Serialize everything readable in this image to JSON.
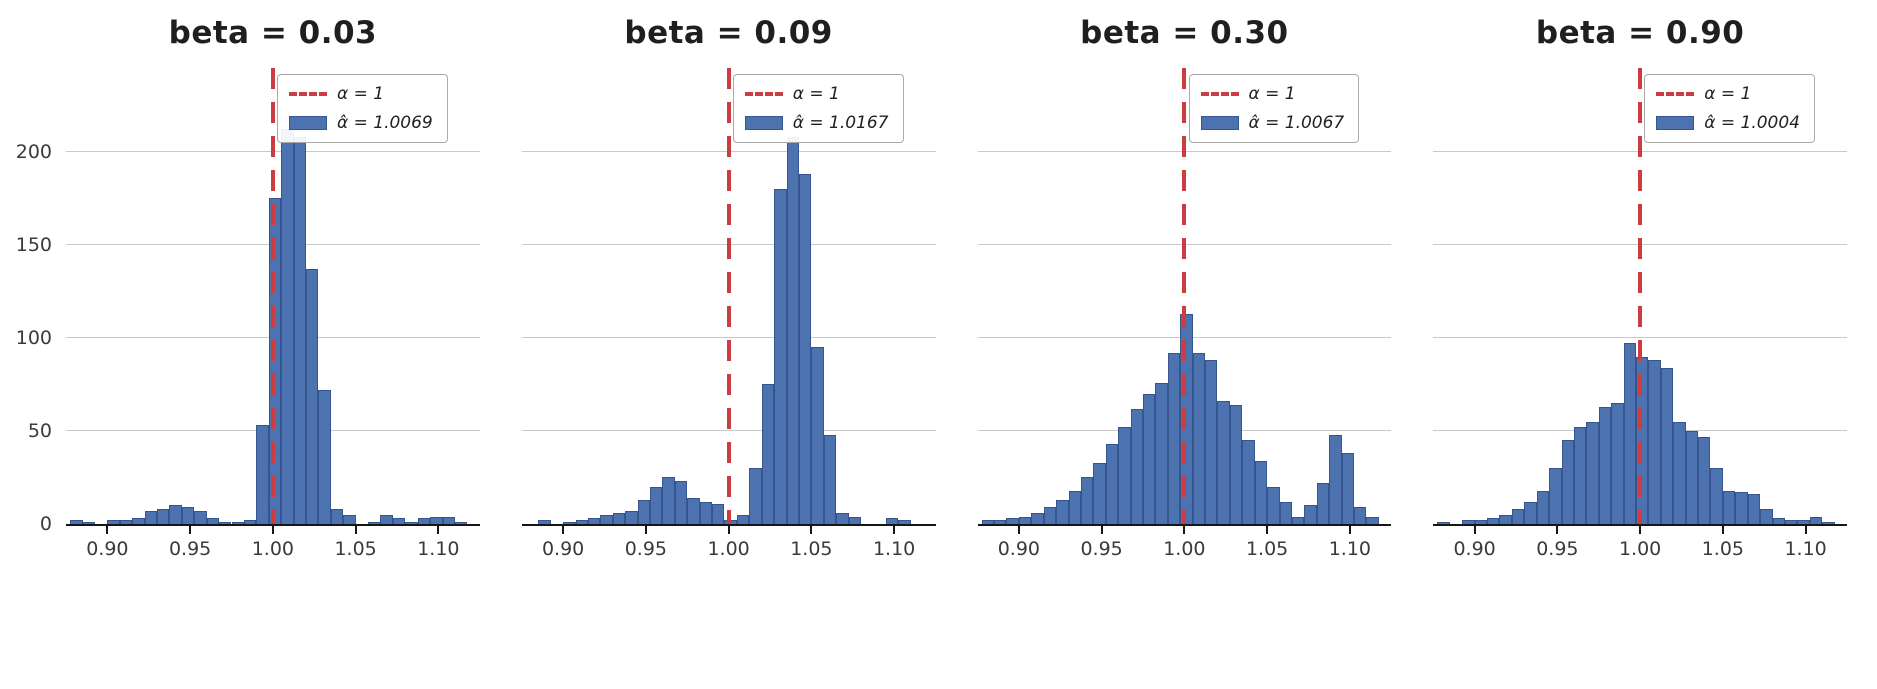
{
  "figure": {
    "background": "#ffffff",
    "bar_color": "#4c72b0",
    "bar_edge_color": "#35558f",
    "vline_color": "#cb3d40",
    "grid_color": "#c9c9c9"
  },
  "chart_data": [
    {
      "type": "bar",
      "subtype": "histogram",
      "title": "beta = 0.03",
      "legend": {
        "line_label": "α = 1",
        "bar_label": "α̂ = 1.0069"
      },
      "vline_x": 1.0,
      "xlim": [
        0.875,
        1.125
      ],
      "ylim": [
        0,
        245
      ],
      "bin_width": 0.0075,
      "x_ticks": [
        0.9,
        0.95,
        1.0,
        1.05,
        1.1
      ],
      "x_tick_labels": [
        "0.90",
        "0.95",
        "1.00",
        "1.05",
        "1.10"
      ],
      "y_ticks": [
        0,
        50,
        100,
        150,
        200
      ],
      "show_y_labels": true,
      "grid": true,
      "legend_position": "upper-right",
      "bins": [
        [
          0.8775,
          2
        ],
        [
          0.885,
          1
        ],
        [
          0.9,
          2
        ],
        [
          0.9075,
          2
        ],
        [
          0.915,
          3
        ],
        [
          0.9225,
          7
        ],
        [
          0.93,
          8
        ],
        [
          0.9375,
          10
        ],
        [
          0.945,
          9
        ],
        [
          0.9525,
          7
        ],
        [
          0.96,
          3
        ],
        [
          0.9675,
          1
        ],
        [
          0.975,
          1
        ],
        [
          0.9825,
          2
        ],
        [
          0.99,
          53
        ],
        [
          0.9975,
          175
        ],
        [
          1.005,
          212
        ],
        [
          1.0125,
          208
        ],
        [
          1.02,
          137
        ],
        [
          1.0275,
          72
        ],
        [
          1.035,
          8
        ],
        [
          1.0425,
          5
        ],
        [
          1.0575,
          1
        ],
        [
          1.065,
          5
        ],
        [
          1.0725,
          3
        ],
        [
          1.08,
          1
        ],
        [
          1.0875,
          3
        ],
        [
          1.095,
          4
        ],
        [
          1.1025,
          4
        ],
        [
          1.11,
          1
        ]
      ]
    },
    {
      "type": "bar",
      "subtype": "histogram",
      "title": "beta = 0.09",
      "legend": {
        "line_label": "α = 1",
        "bar_label": "α̂ = 1.0167"
      },
      "vline_x": 1.0,
      "xlim": [
        0.875,
        1.125
      ],
      "ylim": [
        0,
        245
      ],
      "bin_width": 0.0075,
      "x_ticks": [
        0.9,
        0.95,
        1.0,
        1.05,
        1.1
      ],
      "x_tick_labels": [
        "0.90",
        "0.95",
        "1.00",
        "1.05",
        "1.10"
      ],
      "y_ticks": [
        0,
        50,
        100,
        150,
        200
      ],
      "show_y_labels": false,
      "grid": true,
      "legend_position": "upper-right",
      "bins": [
        [
          0.885,
          2
        ],
        [
          0.9,
          1
        ],
        [
          0.9075,
          2
        ],
        [
          0.915,
          3
        ],
        [
          0.9225,
          5
        ],
        [
          0.93,
          6
        ],
        [
          0.9375,
          7
        ],
        [
          0.945,
          13
        ],
        [
          0.9525,
          20
        ],
        [
          0.96,
          25
        ],
        [
          0.9675,
          23
        ],
        [
          0.975,
          14
        ],
        [
          0.9825,
          12
        ],
        [
          0.99,
          11
        ],
        [
          0.9975,
          2
        ],
        [
          1.005,
          5
        ],
        [
          1.0125,
          30
        ],
        [
          1.02,
          75
        ],
        [
          1.0275,
          180
        ],
        [
          1.035,
          208
        ],
        [
          1.0425,
          188
        ],
        [
          1.05,
          95
        ],
        [
          1.0575,
          48
        ],
        [
          1.065,
          6
        ],
        [
          1.0725,
          4
        ],
        [
          1.095,
          3
        ],
        [
          1.1025,
          2
        ]
      ]
    },
    {
      "type": "bar",
      "subtype": "histogram",
      "title": "beta = 0.30",
      "legend": {
        "line_label": "α = 1",
        "bar_label": "α̂ = 1.0067"
      },
      "vline_x": 1.0,
      "xlim": [
        0.875,
        1.125
      ],
      "ylim": [
        0,
        245
      ],
      "bin_width": 0.0075,
      "x_ticks": [
        0.9,
        0.95,
        1.0,
        1.05,
        1.1
      ],
      "x_tick_labels": [
        "0.90",
        "0.95",
        "1.00",
        "1.05",
        "1.10"
      ],
      "y_ticks": [
        0,
        50,
        100,
        150,
        200
      ],
      "show_y_labels": false,
      "grid": true,
      "legend_position": "upper-right",
      "bins": [
        [
          0.8775,
          2
        ],
        [
          0.885,
          2
        ],
        [
          0.8925,
          3
        ],
        [
          0.9,
          4
        ],
        [
          0.9075,
          6
        ],
        [
          0.915,
          9
        ],
        [
          0.9225,
          13
        ],
        [
          0.93,
          18
        ],
        [
          0.9375,
          25
        ],
        [
          0.945,
          33
        ],
        [
          0.9525,
          43
        ],
        [
          0.96,
          52
        ],
        [
          0.9675,
          62
        ],
        [
          0.975,
          70
        ],
        [
          0.9825,
          76
        ],
        [
          0.99,
          92
        ],
        [
          0.9975,
          113
        ],
        [
          1.005,
          92
        ],
        [
          1.0125,
          88
        ],
        [
          1.02,
          66
        ],
        [
          1.0275,
          64
        ],
        [
          1.035,
          45
        ],
        [
          1.0425,
          34
        ],
        [
          1.05,
          20
        ],
        [
          1.0575,
          12
        ],
        [
          1.065,
          4
        ],
        [
          1.0725,
          10
        ],
        [
          1.08,
          22
        ],
        [
          1.0875,
          48
        ],
        [
          1.095,
          38
        ],
        [
          1.1025,
          9
        ],
        [
          1.11,
          4
        ]
      ]
    },
    {
      "type": "bar",
      "subtype": "histogram",
      "title": "beta = 0.90",
      "legend": {
        "line_label": "α = 1",
        "bar_label": "α̂ = 1.0004"
      },
      "vline_x": 1.0,
      "xlim": [
        0.875,
        1.125
      ],
      "ylim": [
        0,
        245
      ],
      "bin_width": 0.0075,
      "x_ticks": [
        0.9,
        0.95,
        1.0,
        1.05,
        1.1
      ],
      "x_tick_labels": [
        "0.90",
        "0.95",
        "1.00",
        "1.05",
        "1.10"
      ],
      "y_ticks": [
        0,
        50,
        100,
        150,
        200
      ],
      "show_y_labels": false,
      "grid": true,
      "legend_position": "upper-right",
      "bins": [
        [
          0.8775,
          1
        ],
        [
          0.8925,
          2
        ],
        [
          0.9,
          2
        ],
        [
          0.9075,
          3
        ],
        [
          0.915,
          5
        ],
        [
          0.9225,
          8
        ],
        [
          0.93,
          12
        ],
        [
          0.9375,
          18
        ],
        [
          0.945,
          30
        ],
        [
          0.9525,
          45
        ],
        [
          0.96,
          52
        ],
        [
          0.9675,
          55
        ],
        [
          0.975,
          63
        ],
        [
          0.9825,
          65
        ],
        [
          0.99,
          97
        ],
        [
          0.9975,
          90
        ],
        [
          1.005,
          88
        ],
        [
          1.0125,
          84
        ],
        [
          1.02,
          55
        ],
        [
          1.0275,
          50
        ],
        [
          1.035,
          47
        ],
        [
          1.0425,
          30
        ],
        [
          1.05,
          18
        ],
        [
          1.0575,
          17
        ],
        [
          1.065,
          16
        ],
        [
          1.0725,
          8
        ],
        [
          1.08,
          3
        ],
        [
          1.0875,
          2
        ],
        [
          1.095,
          2
        ],
        [
          1.1025,
          4
        ],
        [
          1.11,
          1
        ]
      ]
    }
  ]
}
